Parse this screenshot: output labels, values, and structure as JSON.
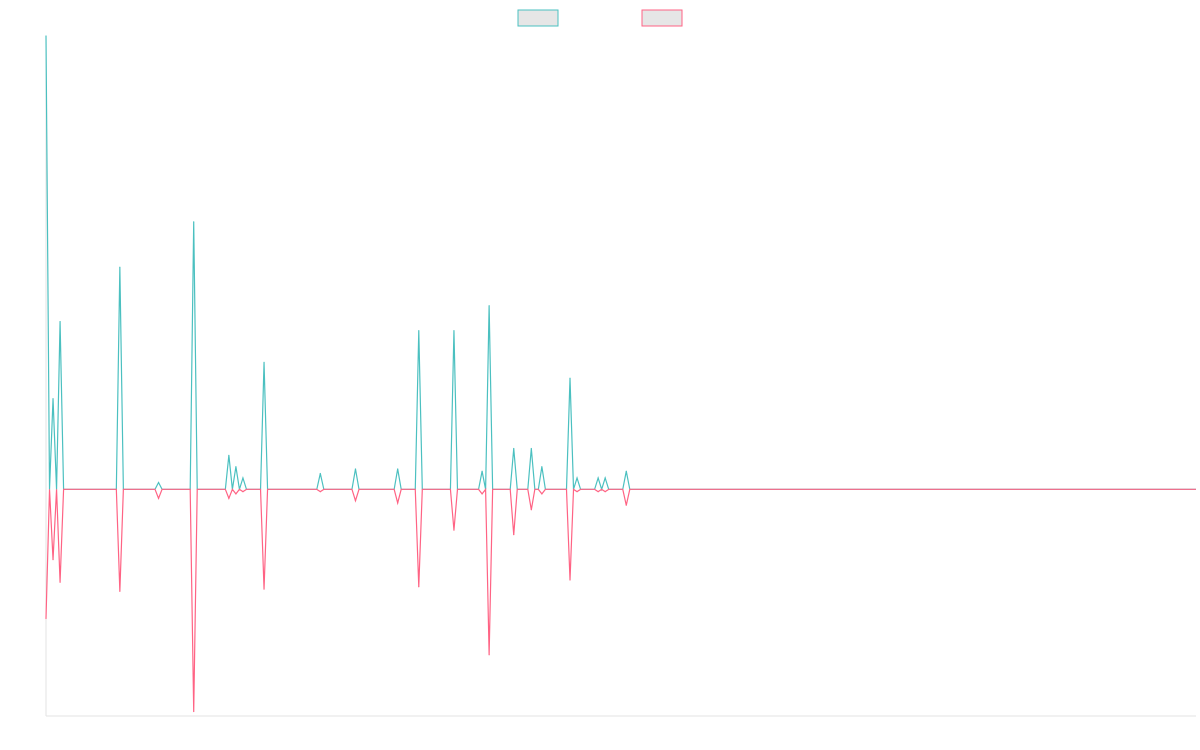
{
  "chart_data": {
    "type": "line",
    "title": "",
    "xlabel": "",
    "ylabel": "",
    "grid": false,
    "legend": "top-center",
    "x_count": 328,
    "ylim": [
      -100,
      200
    ],
    "series": [
      {
        "color": "#4bc0c0",
        "legend_fill": "#e6e6e6",
        "points": [
          [
            0,
            200
          ],
          [
            1,
            0
          ],
          [
            2,
            40
          ],
          [
            3,
            0
          ],
          [
            4,
            74
          ],
          [
            21,
            98
          ],
          [
            32,
            3
          ],
          [
            42,
            118
          ],
          [
            52,
            15
          ],
          [
            54,
            10
          ],
          [
            56,
            5
          ],
          [
            62,
            56
          ],
          [
            78,
            7
          ],
          [
            88,
            9
          ],
          [
            100,
            9
          ],
          [
            106,
            70
          ],
          [
            116,
            70
          ],
          [
            124,
            8
          ],
          [
            126,
            81
          ],
          [
            133,
            18
          ],
          [
            138,
            18
          ],
          [
            141,
            10
          ],
          [
            149,
            49
          ],
          [
            151,
            5
          ],
          [
            157,
            5
          ],
          [
            159,
            5
          ],
          [
            165,
            8
          ]
        ]
      },
      {
        "color": "#ff6384",
        "legend_fill": "#e6e6e6",
        "points": [
          [
            0,
            -57
          ],
          [
            1,
            0
          ],
          [
            2,
            -31
          ],
          [
            3,
            0
          ],
          [
            4,
            -41
          ],
          [
            21,
            -45
          ],
          [
            32,
            -4
          ],
          [
            42,
            -98
          ],
          [
            52,
            -4
          ],
          [
            54,
            -2
          ],
          [
            56,
            -1
          ],
          [
            62,
            -44
          ],
          [
            78,
            -1
          ],
          [
            88,
            -5
          ],
          [
            100,
            -6
          ],
          [
            106,
            -43
          ],
          [
            116,
            -18
          ],
          [
            124,
            -2
          ],
          [
            126,
            -73
          ],
          [
            133,
            -20
          ],
          [
            138,
            -9
          ],
          [
            141,
            -2
          ],
          [
            149,
            -40
          ],
          [
            151,
            -1
          ],
          [
            157,
            -1
          ],
          [
            159,
            -1
          ],
          [
            165,
            -7
          ]
        ]
      }
    ]
  }
}
